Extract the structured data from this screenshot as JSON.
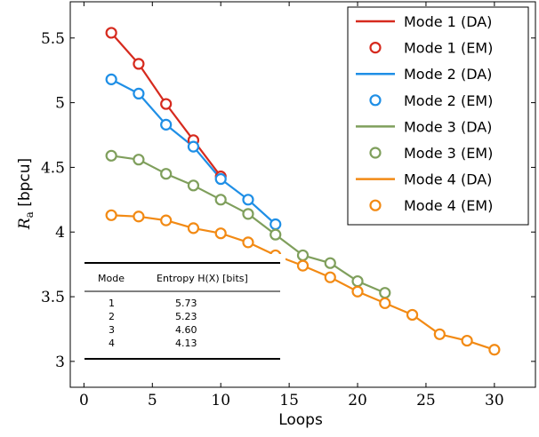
{
  "chart_data": {
    "type": "line",
    "xlabel": "Loops",
    "ylabel_main": "R",
    "ylabel_sub": "a",
    "ylabel_unit": " [bpcu]",
    "xlim": [
      -1,
      33
    ],
    "ylim": [
      2.8,
      5.78
    ],
    "xticks": [
      0,
      5,
      10,
      15,
      20,
      25,
      30
    ],
    "yticks": [
      3,
      3.5,
      4,
      4.5,
      5,
      5.5
    ],
    "ytick_labels": [
      "3",
      "3.5",
      "4",
      "4.5",
      "5",
      "5.5"
    ],
    "legend_position": "top-right",
    "series": [
      {
        "name_da": "Mode 1 (DA)",
        "name_em": "Mode 1 (EM)",
        "color": "#d62a1e",
        "x": [
          2,
          4,
          6,
          8,
          10
        ],
        "y": [
          5.54,
          5.3,
          4.99,
          4.71,
          4.43
        ]
      },
      {
        "name_da": "Mode 2 (DA)",
        "name_em": "Mode 2 (EM)",
        "color": "#1f8fe6",
        "x": [
          2,
          4,
          6,
          8,
          10,
          12,
          14
        ],
        "y": [
          5.18,
          5.07,
          4.83,
          4.66,
          4.41,
          4.25,
          4.06
        ]
      },
      {
        "name_da": "Mode 3 (DA)",
        "name_em": "Mode 3 (EM)",
        "color": "#7f9f5c",
        "x": [
          2,
          4,
          6,
          8,
          10,
          12,
          14,
          16,
          18,
          20,
          22
        ],
        "y": [
          4.59,
          4.56,
          4.45,
          4.36,
          4.25,
          4.14,
          3.98,
          3.82,
          3.76,
          3.62,
          3.53
        ]
      },
      {
        "name_da": "Mode 4 (DA)",
        "name_em": "Mode 4 (EM)",
        "color": "#f28a14",
        "x": [
          2,
          4,
          6,
          8,
          10,
          12,
          14,
          16,
          18,
          20,
          22,
          24,
          26,
          28,
          30
        ],
        "y": [
          4.13,
          4.12,
          4.09,
          4.03,
          3.99,
          3.92,
          3.82,
          3.74,
          3.65,
          3.54,
          3.45,
          3.36,
          3.21,
          3.16,
          3.09
        ]
      }
    ],
    "table": {
      "header_mode": "Mode",
      "header_entropy": "Entropy H(X) [bits]",
      "rows": [
        {
          "mode": "1",
          "entropy": "5.73"
        },
        {
          "mode": "2",
          "entropy": "5.23"
        },
        {
          "mode": "3",
          "entropy": "4.60"
        },
        {
          "mode": "4",
          "entropy": "4.13"
        }
      ]
    }
  }
}
